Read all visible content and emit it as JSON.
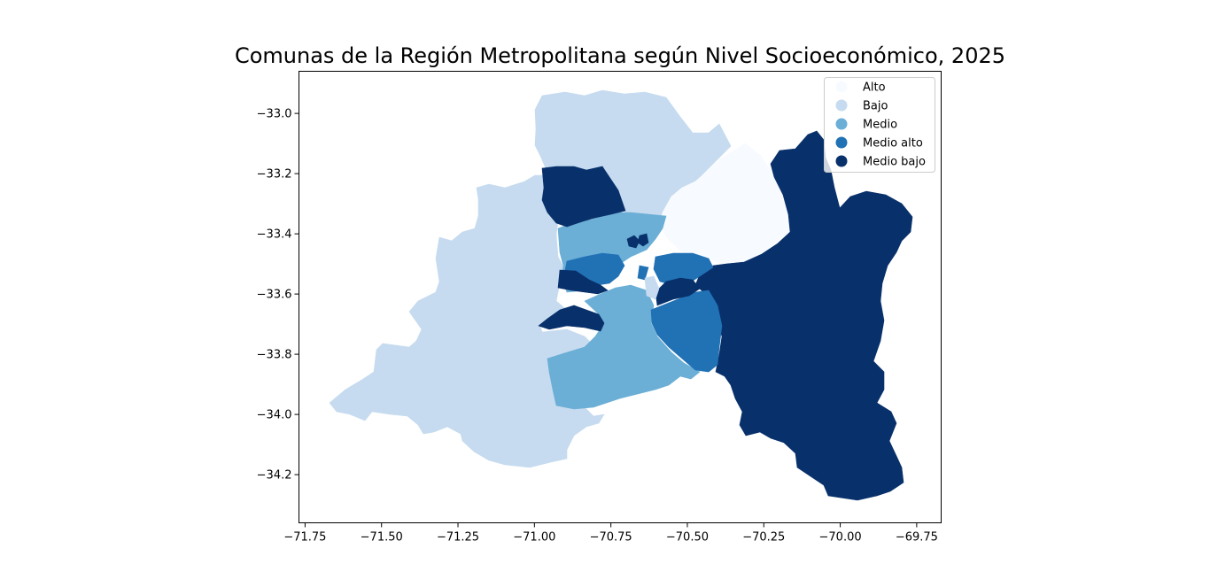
{
  "map": {
    "title": "Comunas de la Región Metropolitana según Nivel Socioeconómico, 2025",
    "x_axis": {
      "ticks": [
        -71.75,
        -71.5,
        -71.25,
        -71.0,
        -70.75,
        -70.5,
        -70.25,
        -70.0,
        -69.75
      ],
      "tick_labels": [
        "−71.75",
        "−71.50",
        "−71.25",
        "−71.00",
        "−70.75",
        "−70.50",
        "−70.25",
        "−70.00",
        "−69.75"
      ],
      "range": [
        -71.77,
        -69.67
      ]
    },
    "y_axis": {
      "ticks": [
        -33.0,
        -33.2,
        -33.4,
        -33.6,
        -33.8,
        -34.0,
        -34.2
      ],
      "tick_labels": [
        "−33.0",
        "−33.2",
        "−33.4",
        "−33.6",
        "−33.8",
        "−34.0",
        "−34.2"
      ],
      "range": [
        -34.36,
        -32.86
      ]
    },
    "legend": {
      "placement": "top-right",
      "items": [
        {
          "key": "alto",
          "label": "Alto",
          "color": "#f7fbff"
        },
        {
          "key": "bajo",
          "label": "Bajo",
          "color": "#c6dbef"
        },
        {
          "key": "medio",
          "label": "Medio",
          "color": "#6baed6"
        },
        {
          "key": "medio_alto",
          "label": "Medio alto",
          "color": "#2171b5"
        },
        {
          "key": "medio_bajo",
          "label": "Medio bajo",
          "color": "#08306b"
        }
      ]
    }
  }
}
